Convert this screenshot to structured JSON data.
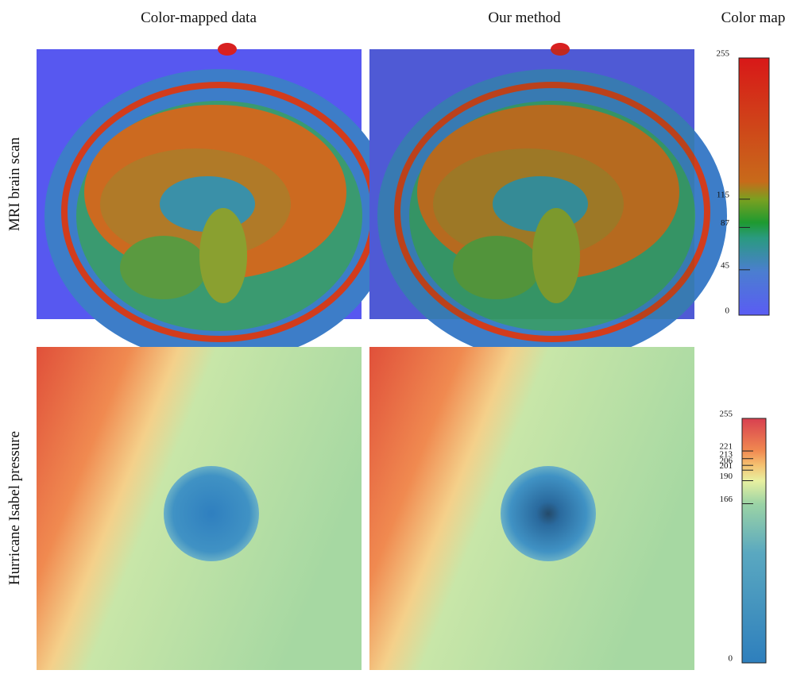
{
  "header": {
    "columns": [
      "Color-mapped data",
      "Our method",
      "Color map"
    ]
  },
  "rows": [
    {
      "label": "MRI brain scan",
      "colormap": {
        "range": [
          0,
          255
        ],
        "ticks": [
          255,
          115,
          87,
          45,
          0
        ]
      }
    },
    {
      "label": "Hurricane Isabel pressure",
      "colormap": {
        "range": [
          0,
          255
        ],
        "ticks": [
          255,
          221,
          213,
          206,
          201,
          190,
          166,
          0
        ]
      }
    }
  ]
}
